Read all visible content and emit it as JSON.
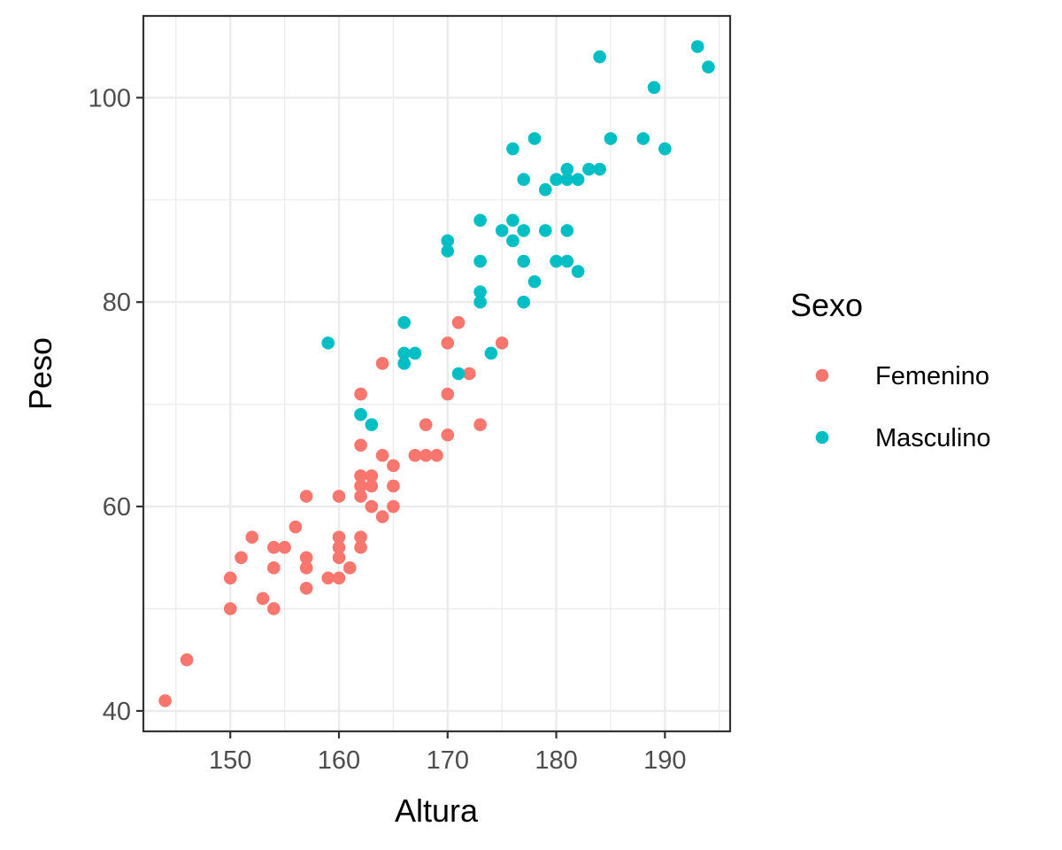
{
  "chart_data": {
    "type": "scatter",
    "title": "",
    "xlabel": "Altura",
    "ylabel": "Peso",
    "xlim": [
      142,
      196
    ],
    "ylim": [
      38,
      108
    ],
    "x_ticks": [
      150,
      160,
      170,
      180,
      190
    ],
    "y_ticks": [
      40,
      60,
      80,
      100
    ],
    "grid": true,
    "legend": {
      "title": "Sexo",
      "position": "right"
    },
    "series": [
      {
        "name": "Femenino",
        "color": "#F8766D",
        "points": [
          [
            144,
            41
          ],
          [
            146,
            45
          ],
          [
            150,
            50
          ],
          [
            150,
            53
          ],
          [
            151,
            55
          ],
          [
            152,
            57
          ],
          [
            153,
            51
          ],
          [
            154,
            50
          ],
          [
            154,
            54
          ],
          [
            154,
            56
          ],
          [
            155,
            56
          ],
          [
            156,
            58
          ],
          [
            157,
            52
          ],
          [
            157,
            54
          ],
          [
            157,
            55
          ],
          [
            157,
            61
          ],
          [
            159,
            53
          ],
          [
            160,
            53
          ],
          [
            160,
            55
          ],
          [
            160,
            56
          ],
          [
            160,
            57
          ],
          [
            160,
            61
          ],
          [
            161,
            54
          ],
          [
            162,
            56
          ],
          [
            162,
            57
          ],
          [
            162,
            61
          ],
          [
            162,
            62
          ],
          [
            162,
            63
          ],
          [
            162,
            66
          ],
          [
            162,
            71
          ],
          [
            163,
            60
          ],
          [
            163,
            62
          ],
          [
            163,
            63
          ],
          [
            164,
            59
          ],
          [
            164,
            65
          ],
          [
            164,
            74
          ],
          [
            165,
            60
          ],
          [
            165,
            62
          ],
          [
            165,
            64
          ],
          [
            167,
            65
          ],
          [
            168,
            65
          ],
          [
            168,
            68
          ],
          [
            169,
            65
          ],
          [
            170,
            67
          ],
          [
            170,
            71
          ],
          [
            170,
            76
          ],
          [
            171,
            78
          ],
          [
            172,
            73
          ],
          [
            173,
            68
          ],
          [
            175,
            76
          ]
        ]
      },
      {
        "name": "Masculino",
        "color": "#00BFC4",
        "points": [
          [
            159,
            76
          ],
          [
            162,
            69
          ],
          [
            163,
            68
          ],
          [
            166,
            74
          ],
          [
            166,
            75
          ],
          [
            166,
            78
          ],
          [
            167,
            75
          ],
          [
            170,
            85
          ],
          [
            170,
            86
          ],
          [
            171,
            73
          ],
          [
            173,
            80
          ],
          [
            173,
            81
          ],
          [
            173,
            84
          ],
          [
            173,
            88
          ],
          [
            174,
            75
          ],
          [
            175,
            87
          ],
          [
            176,
            86
          ],
          [
            176,
            88
          ],
          [
            176,
            95
          ],
          [
            177,
            80
          ],
          [
            177,
            84
          ],
          [
            177,
            87
          ],
          [
            177,
            92
          ],
          [
            178,
            82
          ],
          [
            178,
            96
          ],
          [
            179,
            87
          ],
          [
            179,
            91
          ],
          [
            180,
            84
          ],
          [
            180,
            92
          ],
          [
            181,
            84
          ],
          [
            181,
            87
          ],
          [
            181,
            92
          ],
          [
            181,
            93
          ],
          [
            182,
            83
          ],
          [
            182,
            92
          ],
          [
            183,
            93
          ],
          [
            184,
            93
          ],
          [
            184,
            104
          ],
          [
            185,
            96
          ],
          [
            188,
            96
          ],
          [
            189,
            101
          ],
          [
            190,
            95
          ],
          [
            193,
            105
          ],
          [
            194,
            103
          ]
        ]
      }
    ]
  }
}
